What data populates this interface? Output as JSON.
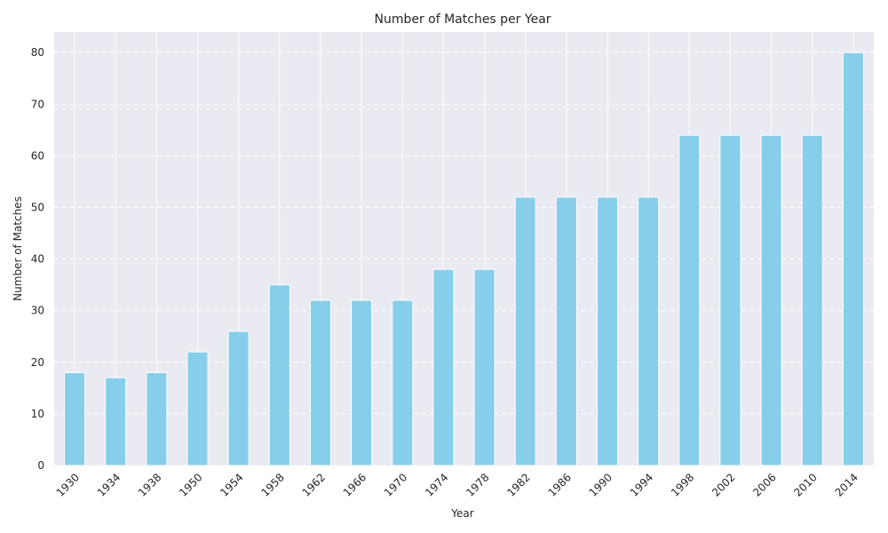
{
  "chart_data": {
    "type": "bar",
    "title": "Number of Matches per Year",
    "xlabel": "Year",
    "ylabel": "Number of Matches",
    "categories": [
      "1930",
      "1934",
      "1938",
      "1950",
      "1954",
      "1958",
      "1962",
      "1966",
      "1970",
      "1974",
      "1978",
      "1982",
      "1986",
      "1990",
      "1994",
      "1998",
      "2002",
      "2006",
      "2010",
      "2014"
    ],
    "values": [
      18,
      17,
      18,
      22,
      26,
      35,
      32,
      32,
      32,
      38,
      38,
      52,
      52,
      52,
      52,
      64,
      64,
      64,
      64,
      80
    ],
    "ylim": [
      0,
      84
    ],
    "yticks": [
      0,
      10,
      20,
      30,
      40,
      50,
      60,
      70,
      80
    ],
    "grid": true,
    "bar_color": "#87CEEB",
    "background_color": "#EAEAF2",
    "grid_color": "#FFFFFF"
  }
}
